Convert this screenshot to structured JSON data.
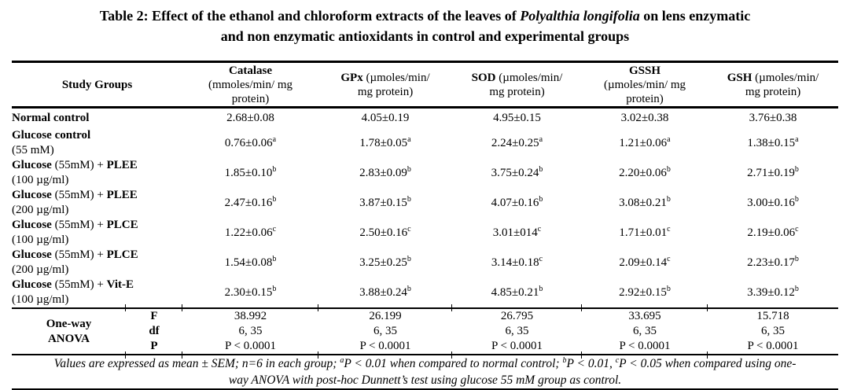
{
  "title": {
    "part1": "Table 2: Effect of the ethanol and chloroform extracts of the leaves of ",
    "italic": "Polyalthia longifolia",
    "part2": " on lens enzymatic",
    "line2": "and non enzymatic antioxidants in control and experimental groups"
  },
  "table": {
    "columns": [
      {
        "key": "study-groups",
        "title": "Study Groups",
        "inline": false,
        "unit_lines": []
      },
      {
        "key": "catalase",
        "title": "Catalase",
        "inline": false,
        "unit_lines": [
          "(mmoles/min/ mg",
          "protein)"
        ]
      },
      {
        "key": "gpx",
        "title": "GPx",
        "inline": true,
        "unit_lines": [
          "(µmoles/min/",
          "mg protein)"
        ]
      },
      {
        "key": "sod",
        "title": "SOD",
        "inline": true,
        "unit_lines": [
          "(µmoles/min/",
          "mg protein)"
        ]
      },
      {
        "key": "gssh",
        "title": "GSSH",
        "inline": false,
        "unit_lines": [
          "(µmoles/min/ mg",
          "protein)"
        ]
      },
      {
        "key": "gsh",
        "title": "GSH",
        "inline": true,
        "unit_lines": [
          "(µmoles/min/",
          "mg protein)"
        ]
      }
    ],
    "rows": [
      {
        "key": "normal-control",
        "line1": [
          {
            "t": "Normal control",
            "b": true
          }
        ],
        "line2": "",
        "values": [
          "2.68±0.08",
          "4.05±0.19",
          "4.95±0.15",
          "3.02±0.38",
          "3.76±0.38"
        ],
        "sups": [
          "",
          "",
          "",
          "",
          ""
        ]
      },
      {
        "key": "glucose-control",
        "line1": [
          {
            "t": "Glucose control",
            "b": true
          }
        ],
        "line2": "(55 mM)",
        "values": [
          "0.76±0.06",
          "1.78±0.05",
          "2.24±0.25",
          "1.21±0.06",
          "1.38±0.15"
        ],
        "sups": [
          "a",
          "a",
          "a",
          "a",
          "a"
        ]
      },
      {
        "key": "glucose-plee-100",
        "line1": [
          {
            "t": "Glucose",
            "b": true
          },
          {
            "t": " (55mM) + ",
            "b": false
          },
          {
            "t": "PLEE",
            "b": true
          }
        ],
        "line2": "(100 µg/ml)",
        "values": [
          "1.85±0.10",
          "2.83±0.09",
          "3.75±0.24",
          "2.20±0.06",
          "2.71±0.19"
        ],
        "sups": [
          "b",
          "b",
          "b",
          "b",
          "b"
        ]
      },
      {
        "key": "glucose-plee-200",
        "line1": [
          {
            "t": "Glucose",
            "b": true
          },
          {
            "t": " (55mM) + ",
            "b": false
          },
          {
            "t": "PLEE",
            "b": true
          }
        ],
        "line2": "(200 µg/ml)",
        "values": [
          "2.47±0.16",
          "3.87±0.15",
          "4.07±0.16",
          "3.08±0.21",
          "3.00±0.16"
        ],
        "sups": [
          "b",
          "b",
          "b",
          "b",
          "b"
        ]
      },
      {
        "key": "glucose-plce-100",
        "line1": [
          {
            "t": "Glucose",
            "b": true
          },
          {
            "t": " (55mM) + ",
            "b": false
          },
          {
            "t": "PLCE",
            "b": true
          }
        ],
        "line2": "(100 µg/ml)",
        "values": [
          "1.22±0.06",
          "2.50±0.16",
          "3.01±014",
          "1.71±0.01",
          "2.19±0.06"
        ],
        "sups": [
          "c",
          "c",
          "c",
          "c",
          "c"
        ]
      },
      {
        "key": "glucose-plce-200",
        "line1": [
          {
            "t": "Glucose",
            "b": true
          },
          {
            "t": " (55mM) + ",
            "b": false
          },
          {
            "t": "PLCE",
            "b": true
          }
        ],
        "line2": "(200 µg/ml)",
        "values": [
          "1.54±0.08",
          "3.25±0.25",
          "3.14±0.18",
          "2.09±0.14",
          "2.23±0.17"
        ],
        "sups": [
          "b",
          "b",
          "c",
          "c",
          "b"
        ]
      },
      {
        "key": "glucose-vit-e-100",
        "line1": [
          {
            "t": "Glucose",
            "b": true
          },
          {
            "t": " (55mM) + ",
            "b": false
          },
          {
            "t": "Vit-E",
            "b": true
          }
        ],
        "line2": "(100 µg/ml)",
        "values": [
          "2.30±0.15",
          "3.88±0.24",
          "4.85±0.21",
          "2.92±0.15",
          "3.39±0.12"
        ],
        "sups": [
          "b",
          "b",
          "b",
          "b",
          "b"
        ]
      }
    ],
    "anova": {
      "label_line1": "One-way",
      "label_line2": "ANOVA",
      "stats": [
        {
          "label": "F",
          "values": [
            "38.992",
            "26.199",
            "26.795",
            "33.695",
            "15.718"
          ]
        },
        {
          "label": "df",
          "values": [
            "6, 35",
            "6, 35",
            "6, 35",
            "6, 35",
            "6, 35"
          ]
        },
        {
          "label": "P",
          "values": [
            "P < 0.0001",
            "P < 0.0001",
            "P < 0.0001",
            "P < 0.0001",
            "P < 0.0001"
          ]
        }
      ]
    }
  },
  "footnote_lines": [
    [
      {
        "text": "Values are expressed as mean ± SEM; n=6 in each group; "
      },
      {
        "sup": "a"
      },
      {
        "text": "P < 0.01 when compared to normal control; "
      },
      {
        "sup": "b"
      },
      {
        "text": "P < 0.01, "
      },
      {
        "sup": "c"
      },
      {
        "text": "P < 0.05 when compared using one-"
      }
    ],
    [
      {
        "text": "way ANOVA with post-hoc Dunnett’s test using glucose 55 mM group as control."
      }
    ]
  ]
}
